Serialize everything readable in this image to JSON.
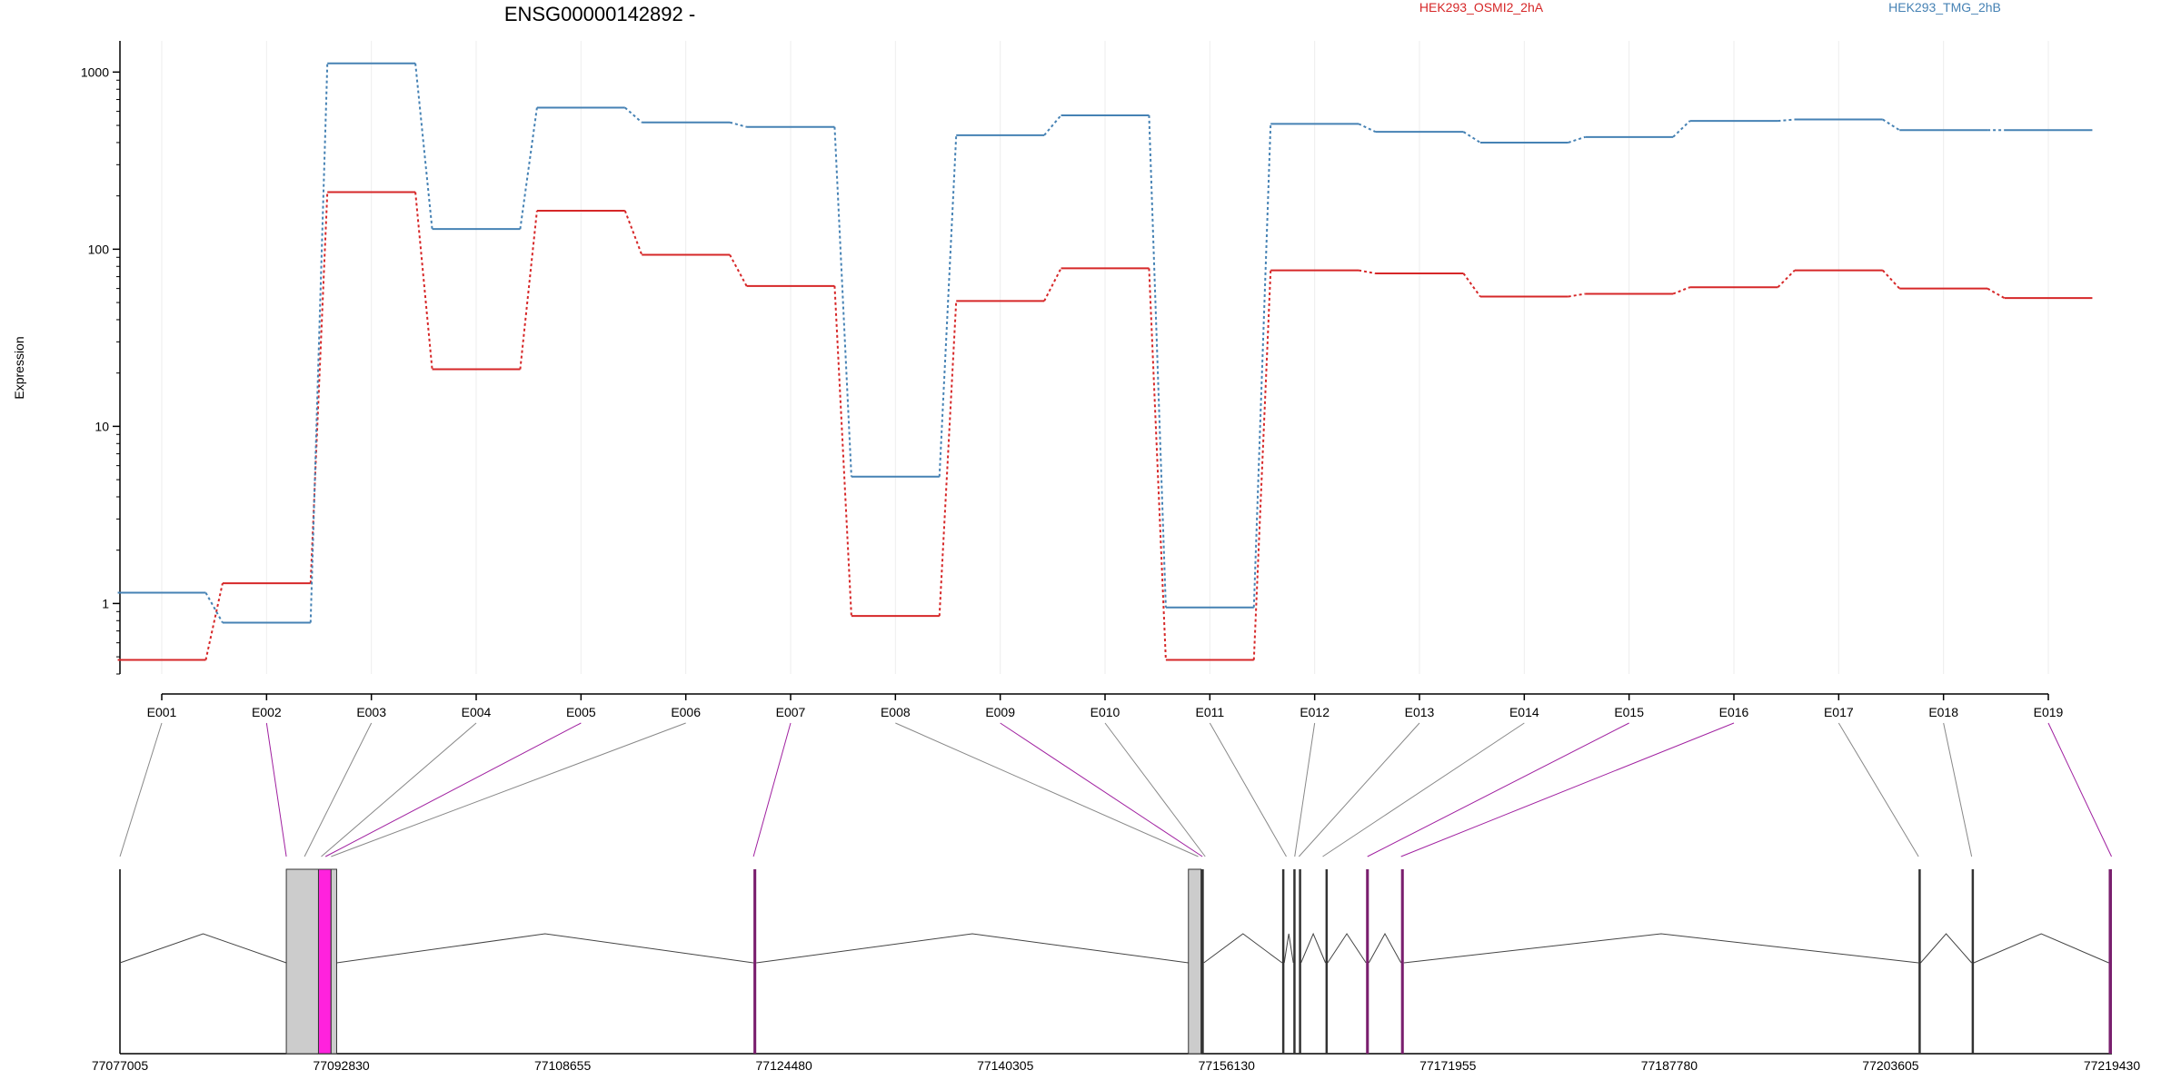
{
  "chart_data": {
    "type": "line",
    "title": "ENSG00000142892 -",
    "ylabel": "Expression",
    "yscale": "log",
    "ylim": [
      0.4,
      1500
    ],
    "yticks": [
      1,
      10,
      100,
      1000
    ],
    "ytick_labels": [
      "1",
      "10",
      "100",
      "1000"
    ],
    "categories": [
      "E001",
      "E002",
      "E003",
      "E004",
      "E005",
      "E006",
      "E007",
      "E008",
      "E009",
      "E010",
      "E011",
      "E012",
      "E013",
      "E014",
      "E015",
      "E016",
      "E017",
      "E018",
      "E019"
    ],
    "series": [
      {
        "name": "HEK293_OSMI2_2hA",
        "color": "#d62728",
        "values": [
          0.48,
          1.3,
          210,
          21,
          165,
          93,
          62,
          0.85,
          51,
          78,
          0.48,
          76,
          73,
          54,
          56,
          61,
          76,
          60,
          53
        ]
      },
      {
        "name": "HEK293_TMG_2hB",
        "color": "#4682b4",
        "values": [
          1.15,
          0.78,
          1120,
          130,
          630,
          520,
          490,
          5.2,
          440,
          570,
          0.95,
          510,
          460,
          400,
          430,
          530,
          540,
          470,
          470
        ]
      }
    ],
    "genome_axis": {
      "range": [
        77077005,
        77219430
      ],
      "tick_labels": [
        "77077005",
        "77092830",
        "77108655",
        "77124480",
        "77140305",
        "77156130",
        "77171955",
        "77187780",
        "77203605",
        "77219430"
      ],
      "exon_link_positions": [
        77077005,
        77088900,
        77090200,
        77091400,
        77091700,
        77092100,
        77122300,
        77154100,
        77154400,
        77154600,
        77160400,
        77161000,
        77161300,
        77163000,
        77166200,
        77168600,
        77205600,
        77209400,
        77219400
      ],
      "highlighted_exons": [
        "E002",
        "E005",
        "E007",
        "E009",
        "E015",
        "E016",
        "E019"
      ],
      "features": [
        {
          "start": 77088900,
          "end": 77091200,
          "kind": "exon",
          "color": "#cccccc"
        },
        {
          "start": 77091200,
          "end": 77092100,
          "kind": "exon",
          "color": "#ff22dd"
        },
        {
          "start": 77092100,
          "end": 77092500,
          "kind": "exon",
          "color": "#cccccc"
        },
        {
          "start": 77122300,
          "end": 77122500,
          "kind": "line",
          "color": "#7a1f6e"
        },
        {
          "start": 77153400,
          "end": 77154300,
          "kind": "exon",
          "color": "#cccccc"
        },
        {
          "start": 77154300,
          "end": 77154500,
          "kind": "line",
          "color": "#333333"
        },
        {
          "start": 77160100,
          "end": 77160250,
          "kind": "line",
          "color": "#333333"
        },
        {
          "start": 77160900,
          "end": 77161050,
          "kind": "line",
          "color": "#333333"
        },
        {
          "start": 77161300,
          "end": 77161450,
          "kind": "line",
          "color": "#333333"
        },
        {
          "start": 77163200,
          "end": 77163350,
          "kind": "line",
          "color": "#333333"
        },
        {
          "start": 77166100,
          "end": 77166300,
          "kind": "line",
          "color": "#7a1f6e"
        },
        {
          "start": 77168600,
          "end": 77168800,
          "kind": "line",
          "color": "#7a1f6e"
        },
        {
          "start": 77205600,
          "end": 77205750,
          "kind": "line",
          "color": "#333333"
        },
        {
          "start": 77209400,
          "end": 77209550,
          "kind": "line",
          "color": "#333333"
        },
        {
          "start": 77219200,
          "end": 77219430,
          "kind": "line",
          "color": "#7a1f6e"
        }
      ]
    }
  }
}
